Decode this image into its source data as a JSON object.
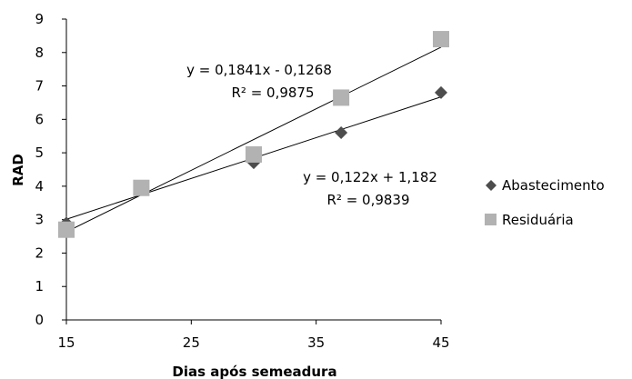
{
  "chart_data": {
    "type": "scatter",
    "xlabel": "Dias após semeadura",
    "ylabel": "RAD",
    "xlim": [
      15,
      45
    ],
    "ylim": [
      0,
      9
    ],
    "xticks": [
      15,
      25,
      35,
      45
    ],
    "yticks": [
      0,
      1,
      2,
      3,
      4,
      5,
      6,
      7,
      8,
      9
    ],
    "grid": false,
    "legend_position": "right",
    "series": [
      {
        "name": "Abastecimento",
        "marker": "diamond",
        "color": "#4d4d4d",
        "x": [
          15,
          21,
          30,
          37,
          45
        ],
        "y": [
          2.9,
          4.0,
          4.7,
          5.6,
          6.8
        ],
        "trendline": {
          "slope": 0.122,
          "intercept": 1.182,
          "equation": "y = 0,122x + 1,182",
          "r2": "R² = 0,9839"
        }
      },
      {
        "name": "Residuária",
        "marker": "square",
        "color": "#b2b2b2",
        "x": [
          15,
          21,
          30,
          37,
          45
        ],
        "y": [
          2.7,
          3.95,
          4.95,
          6.65,
          8.4
        ],
        "trendline": {
          "slope": 0.1841,
          "intercept": -0.1268,
          "equation": "y = 0,1841x - 0,1268",
          "r2": "R² = 0,9875"
        }
      }
    ]
  }
}
